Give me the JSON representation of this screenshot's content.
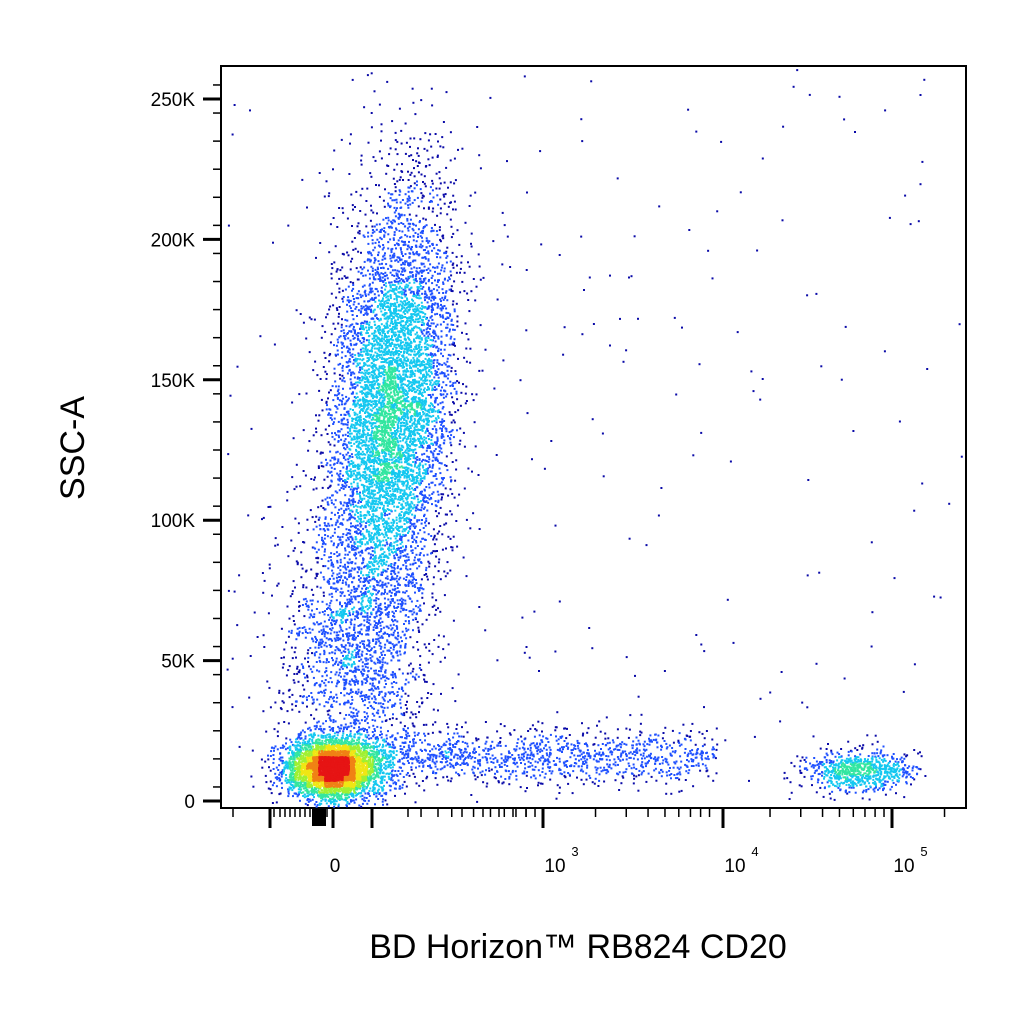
{
  "chart_data": {
    "type": "scatter",
    "subtype": "flow-cytometry-density-dot-plot",
    "title": "",
    "xlabel": "BD Horizon™ RB824 CD20",
    "ylabel": "SSC-A",
    "x_scale": "biexponential",
    "x_ticks": [
      {
        "value": 0,
        "label": "0"
      },
      {
        "value": 1000,
        "label": "10",
        "exp": "3"
      },
      {
        "value": 10000,
        "label": "10",
        "exp": "4"
      },
      {
        "value": 100000,
        "label": "10",
        "exp": "5"
      }
    ],
    "y_scale": "linear",
    "ylim": [
      -3000,
      262144
    ],
    "y_ticks": [
      {
        "value": 0,
        "label": "0"
      },
      {
        "value": 50000,
        "label": "50K"
      },
      {
        "value": 100000,
        "label": "100K"
      },
      {
        "value": 150000,
        "label": "150K"
      },
      {
        "value": 200000,
        "label": "200K"
      },
      {
        "value": 250000,
        "label": "250K"
      }
    ],
    "grid": false,
    "legend": "none",
    "color_scale": [
      "#0a0aa8",
      "#1e50ff",
      "#14c8f0",
      "#32e6a0",
      "#a0f032",
      "#f0e614",
      "#f08214",
      "#e61414"
    ],
    "populations": [
      {
        "x_center": 0,
        "y_center": 12000,
        "x_spread": 45,
        "y_spread": 6000,
        "relative_size": 0.26
      },
      {
        "x_center": 160,
        "y_center": 140000,
        "x_spread": 65,
        "y_spread": 38000,
        "relative_size": 0.4
      },
      {
        "x_center": 160,
        "y_center": 55000,
        "x_spread": 70,
        "y_spread": 22000,
        "relative_size": 0.09
      },
      {
        "x_center": 1500,
        "y_center": 16000,
        "x_spread_decades": 0.45,
        "y_spread": 5000,
        "relative_size": 0.07
      },
      {
        "x_center": 50000,
        "y_center": 11000,
        "x_spread_decades": 0.14,
        "y_spread": 3500,
        "relative_size": 0.045
      }
    ]
  }
}
